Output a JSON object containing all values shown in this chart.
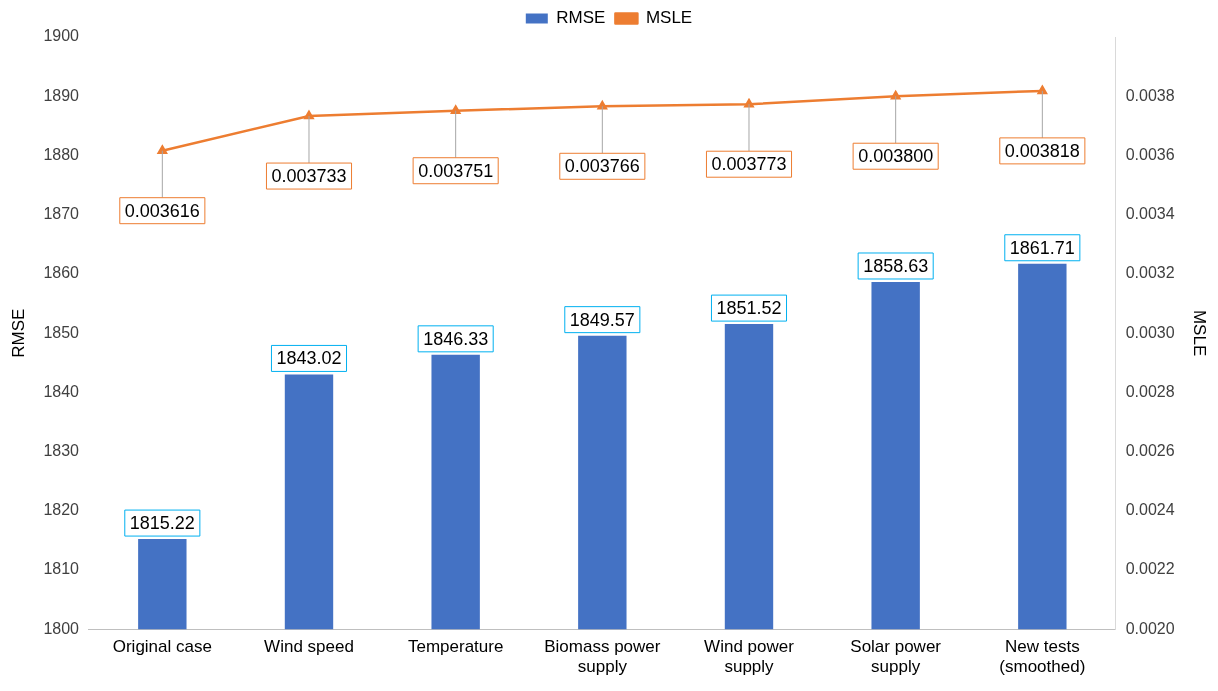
{
  "chart_data": {
    "type": "bar",
    "ylabel": "RMSE",
    "y2label": "MSLE",
    "categories": [
      "Original case",
      "Wind speed",
      "Temperature",
      "Biomass power supply",
      "Wind power supply",
      "Solar power supply",
      "New tests (smoothed)"
    ],
    "series": [
      {
        "name": "RMSE",
        "color": "#4472c4",
        "values": [
          1815.22,
          1843.02,
          1846.33,
          1849.57,
          1851.52,
          1858.63,
          1861.71
        ]
      },
      {
        "name": "MSLE",
        "type": "line",
        "axis": "y2",
        "color": "#ed7d31",
        "marker": "triangle",
        "values": [
          0.003616,
          0.003733,
          0.003751,
          0.003766,
          0.003773,
          0.0038,
          0.003818
        ],
        "value_labels": [
          "0.003616",
          "0.003733",
          "0.003751",
          "0.003766",
          "0.003773",
          "0.003800",
          "0.003818"
        ]
      }
    ],
    "ylim": [
      1800,
      1900
    ],
    "yticks": [
      1800,
      1810,
      1820,
      1830,
      1840,
      1850,
      1860,
      1870,
      1880,
      1890,
      1900
    ],
    "y2lim": [
      0.002,
      0.004
    ],
    "y2ticks": [
      "0.0020",
      "0.0022",
      "0.0024",
      "0.0026",
      "0.0028",
      "0.0030",
      "0.0032",
      "0.0034",
      "0.0036",
      "0.0038"
    ],
    "data_labels": true,
    "grid": false,
    "legend": "top"
  }
}
